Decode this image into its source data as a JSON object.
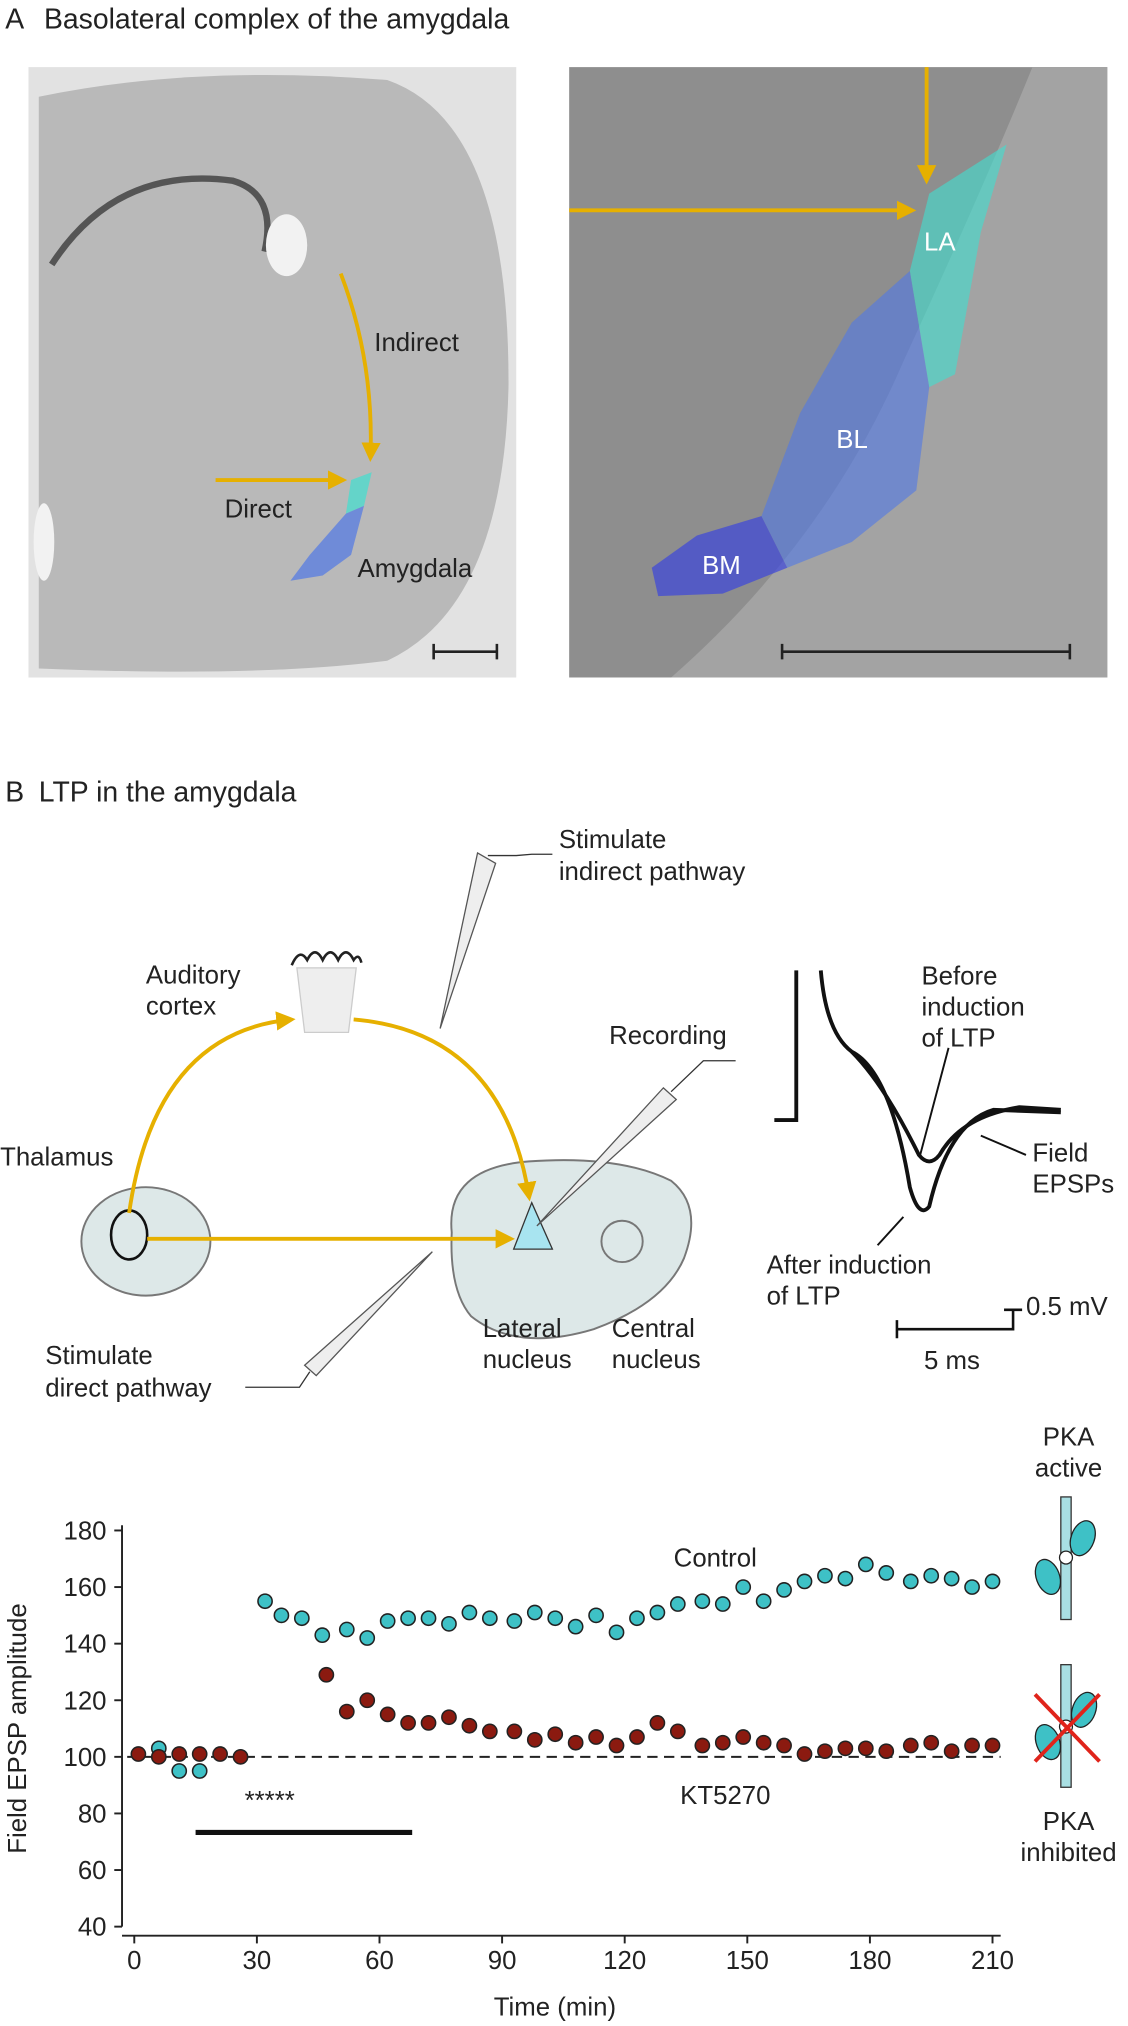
{
  "panel_a": {
    "label": "A",
    "title": "Basolateral complex of the amygdala",
    "labels": {
      "indirect": "Indirect",
      "direct": "Direct",
      "amygdala": "Amygdala",
      "la": "LA",
      "bl": "BL",
      "bm": "BM"
    }
  },
  "panel_b": {
    "label": "B",
    "title": "LTP in the amygdala",
    "diagram": {
      "stimulate_indirect": [
        "Stimulate",
        "indirect pathway"
      ],
      "auditory_cortex": [
        "Auditory",
        "cortex"
      ],
      "recording": "Recording",
      "thalamus": "Thalamus",
      "stimulate_direct": [
        "Stimulate",
        "direct pathway"
      ],
      "lateral_nucleus": [
        "Lateral",
        "nucleus"
      ],
      "central_nucleus": [
        "Central",
        "nucleus"
      ]
    },
    "traces": {
      "before": [
        "Before",
        "induction",
        "of LTP"
      ],
      "field": [
        "Field",
        "EPSPs"
      ],
      "after": [
        "After induction",
        "of LTP"
      ],
      "scale_v": "0.5 mV",
      "scale_t": "5 ms"
    },
    "icons": {
      "active": [
        "PKA",
        "active"
      ],
      "inhibited": [
        "PKA",
        "inhibited"
      ]
    }
  },
  "chart_data": {
    "type": "scatter",
    "x_label": "Time (min)",
    "y_label": "Field EPSP amplitude",
    "xlim": [
      -3,
      212
    ],
    "ylim": [
      40,
      180
    ],
    "xticks": [
      0,
      30,
      60,
      90,
      120,
      150,
      180,
      210
    ],
    "yticks": [
      40,
      60,
      80,
      100,
      120,
      140,
      160,
      180
    ],
    "baseline": 100,
    "stars": "*****",
    "treatment_bar": [
      15,
      68
    ],
    "series": [
      {
        "name": "Control",
        "color": "#3ec1c6",
        "x": [
          6,
          11,
          16,
          32,
          36,
          41,
          46,
          52,
          57,
          62,
          67,
          72,
          77,
          82,
          87,
          93,
          98,
          103,
          108,
          113,
          118,
          123,
          128,
          133,
          139,
          144,
          149,
          154,
          159,
          164,
          169,
          174,
          179,
          184,
          190,
          195,
          200,
          205,
          210
        ],
        "values": [
          103,
          95,
          95,
          155,
          150,
          149,
          143,
          145,
          142,
          148,
          149,
          149,
          147,
          151,
          149,
          148,
          151,
          149,
          146,
          150,
          144,
          149,
          151,
          154,
          155,
          154,
          160,
          155,
          159,
          162,
          164,
          163,
          168,
          165,
          162,
          164,
          163,
          160,
          162
        ]
      },
      {
        "name": "KT5270",
        "color": "#8b1a10",
        "x": [
          1,
          6,
          11,
          16,
          21,
          26,
          47,
          52,
          57,
          62,
          67,
          72,
          77,
          82,
          87,
          93,
          98,
          103,
          108,
          113,
          118,
          123,
          128,
          133,
          139,
          144,
          149,
          154,
          159,
          164,
          169,
          174,
          179,
          184,
          190,
          195,
          200,
          205,
          210
        ],
        "values": [
          101,
          100,
          101,
          101,
          101,
          100,
          129,
          116,
          120,
          115,
          112,
          112,
          114,
          111,
          109,
          109,
          106,
          108,
          105,
          107,
          104,
          107,
          112,
          109,
          104,
          105,
          107,
          105,
          104,
          101,
          102,
          103,
          103,
          102,
          104,
          105,
          102,
          104,
          104
        ]
      }
    ]
  }
}
